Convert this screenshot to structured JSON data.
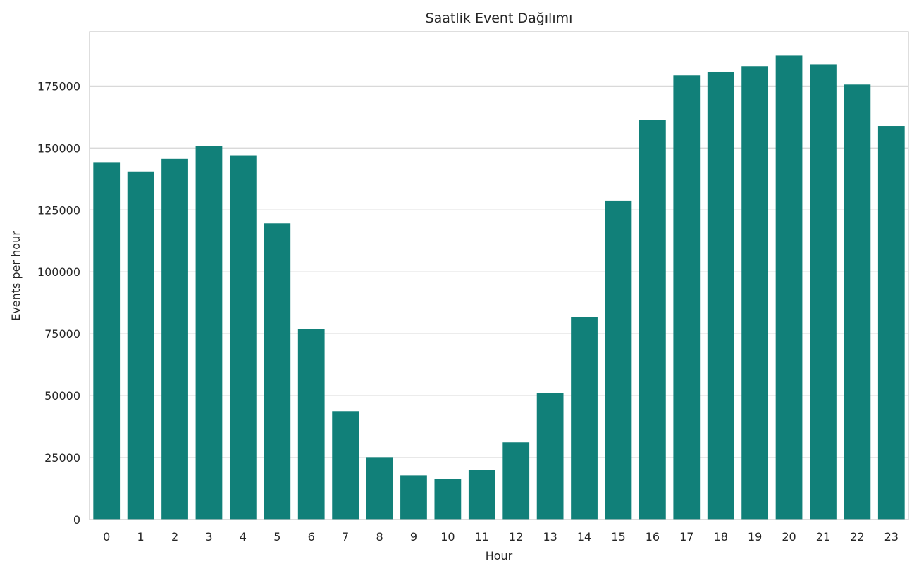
{
  "chart_data": {
    "type": "bar",
    "title": "Saatlik Event Dağılımı",
    "xlabel": "Hour",
    "ylabel": "Events per hour",
    "categories": [
      "0",
      "1",
      "2",
      "3",
      "4",
      "5",
      "6",
      "7",
      "8",
      "9",
      "10",
      "11",
      "12",
      "13",
      "14",
      "15",
      "16",
      "17",
      "18",
      "19",
      "20",
      "21",
      "22",
      "23"
    ],
    "values": [
      144300,
      140500,
      145600,
      150700,
      147100,
      119600,
      76800,
      43700,
      25200,
      17800,
      16300,
      20100,
      31200,
      50900,
      81700,
      128800,
      161400,
      179300,
      180800,
      183000,
      187500,
      183800,
      175600,
      158900
    ],
    "yticks": [
      0,
      25000,
      50000,
      75000,
      100000,
      125000,
      150000,
      175000
    ],
    "ylim": [
      0,
      197000
    ],
    "grid": "horizontal",
    "bar_color": "#118079",
    "grid_color": "#d9d9d9",
    "spine_color": "#cccccc",
    "text_color": "#262626"
  }
}
